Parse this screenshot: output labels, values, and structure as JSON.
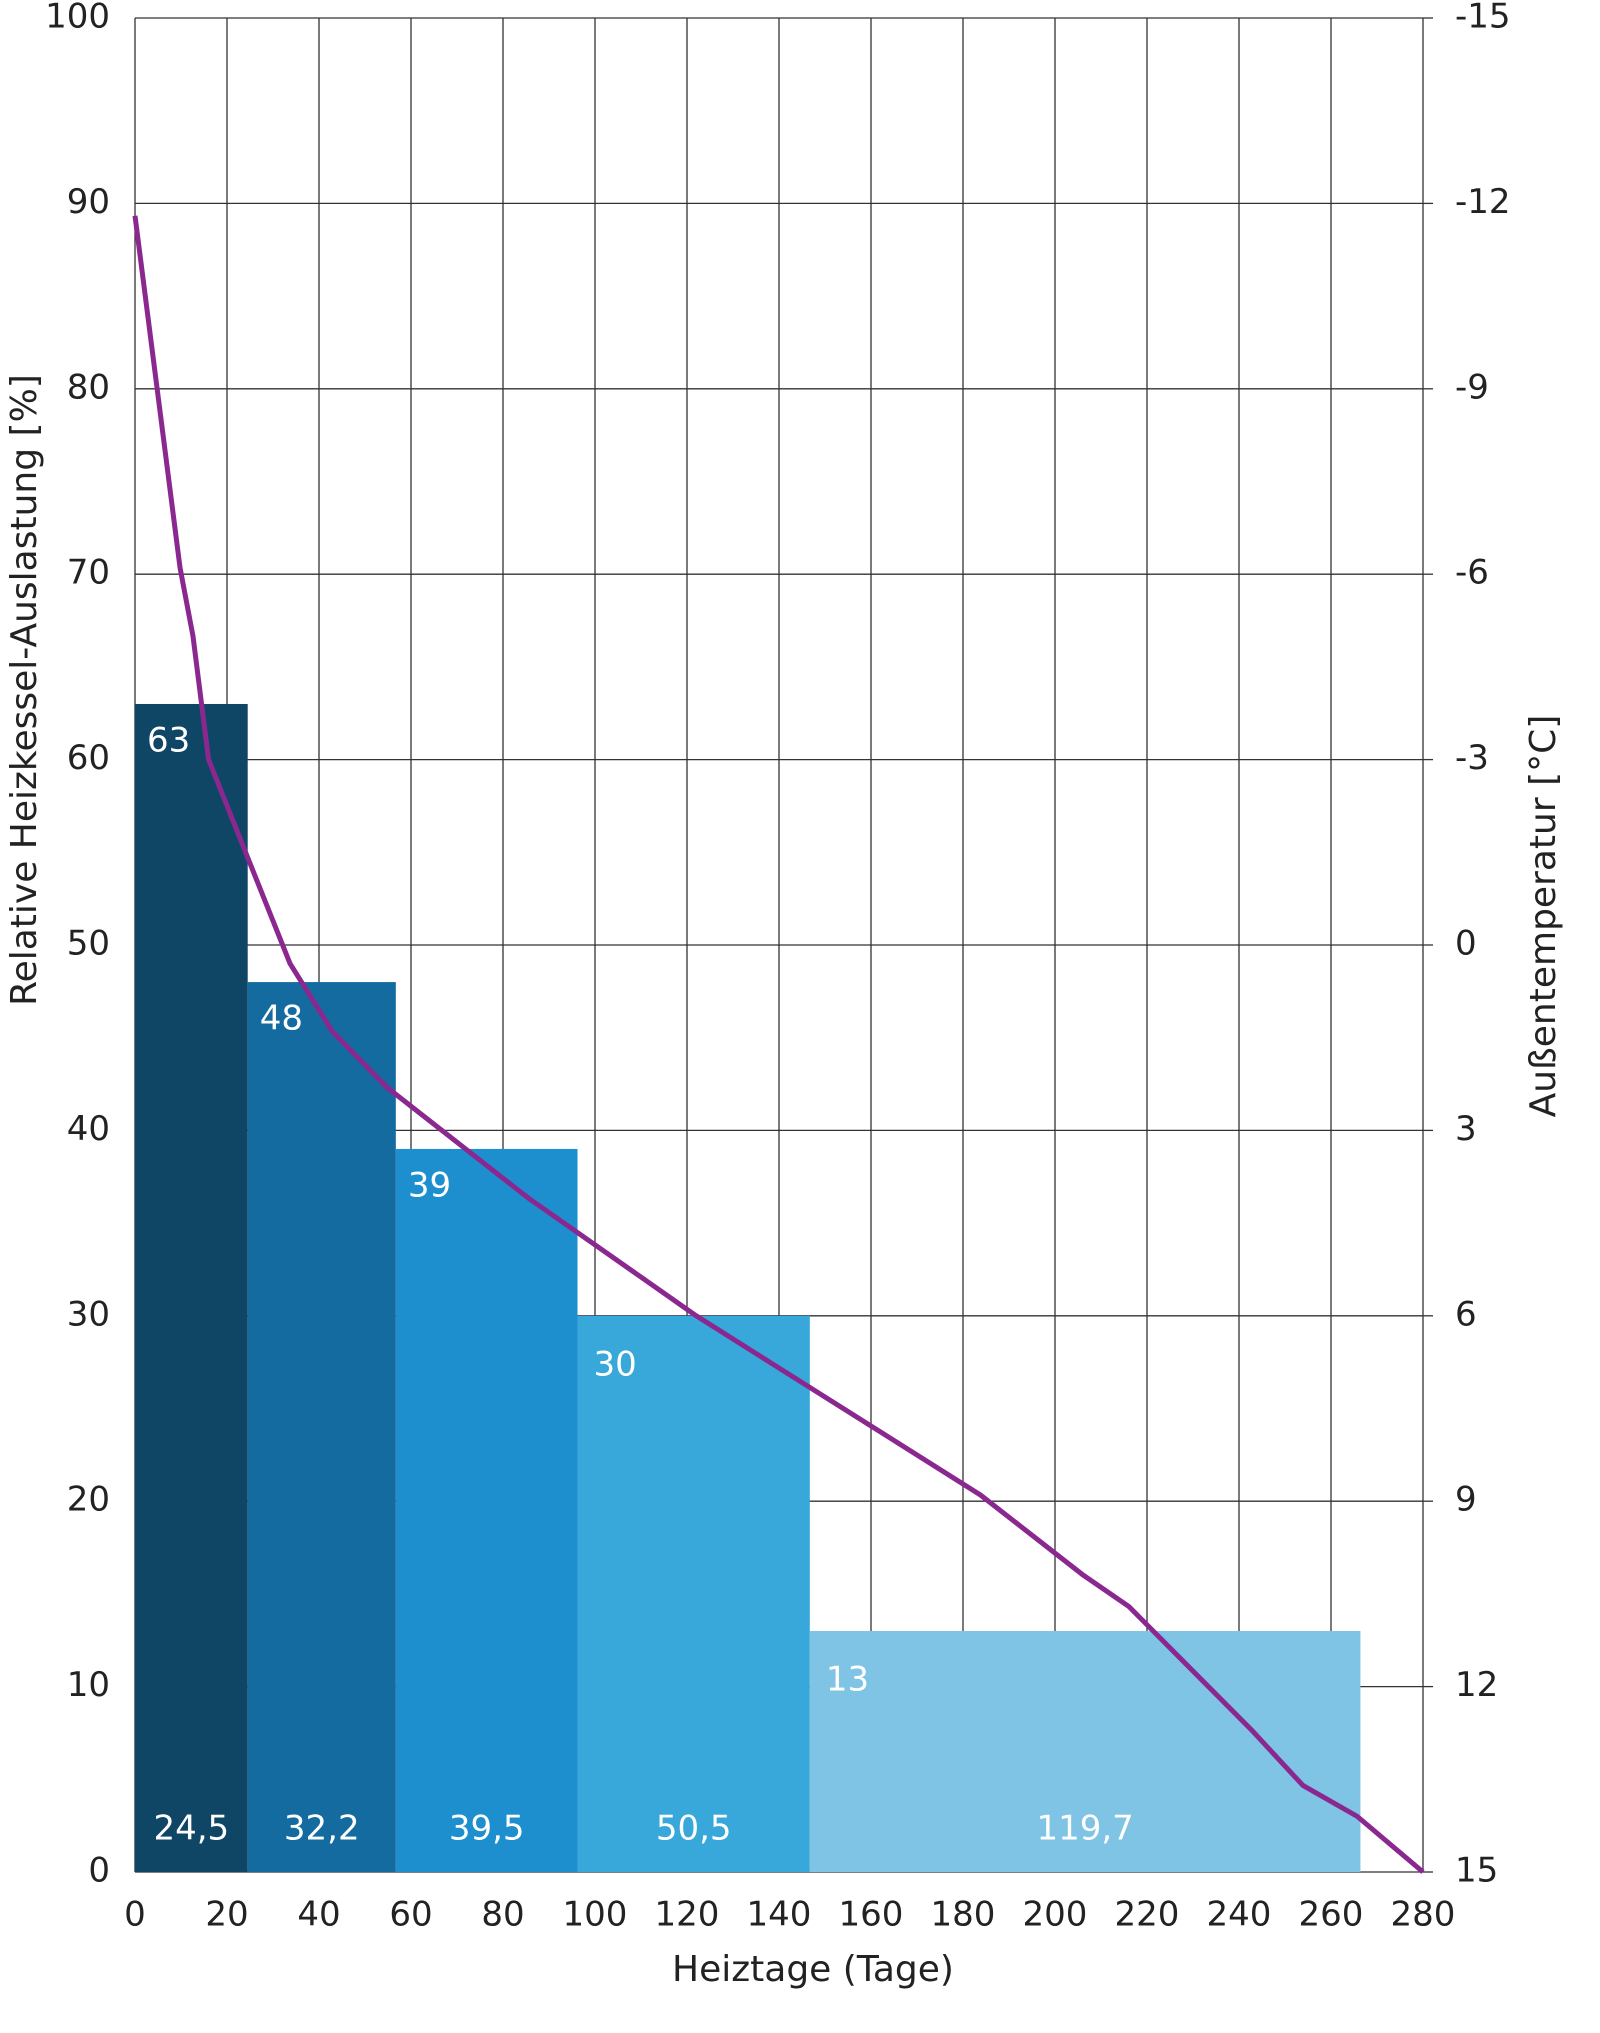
{
  "chart_data": {
    "type": "bar",
    "xlabel": "Heiztage (Tage)",
    "ylabel": "Relative Heizkessel-Auslastung [%]",
    "y2label": "Außentemperatur [°C]",
    "xlim": [
      0,
      280
    ],
    "xticks": [
      0,
      20,
      40,
      60,
      80,
      100,
      120,
      140,
      160,
      180,
      200,
      220,
      240,
      260,
      280
    ],
    "ylim": [
      0,
      100
    ],
    "yticks": [
      0,
      10,
      20,
      30,
      40,
      50,
      60,
      70,
      80,
      90,
      100
    ],
    "y2lim": [
      15,
      -15
    ],
    "y2ticks": [
      15,
      12,
      9,
      6,
      3,
      0,
      -3,
      -6,
      -9,
      -12,
      -15
    ],
    "grid": true,
    "bars": {
      "values": [
        63,
        48,
        39,
        30,
        13
      ],
      "widths": [
        24.5,
        32.2,
        39.5,
        50.5,
        119.7
      ],
      "width_labels": [
        "24,5",
        "32,2",
        "39,5",
        "50,5",
        "119,7"
      ],
      "colors": [
        "#0f4565",
        "#136b9f",
        "#1e8fce",
        "#38a8db",
        "#7fc4e5"
      ]
    },
    "line": {
      "axis": "y2",
      "color": "#8b2890",
      "x": [
        0,
        9.8,
        12.6,
        16,
        33.7,
        42.9,
        54.7,
        85.6,
        122,
        183.8,
        206.2,
        216,
        242.7,
        253.9,
        265.7,
        280
      ],
      "values": [
        -11.8,
        -6.1,
        -5.0,
        -3.0,
        0.3,
        1.4,
        2.3,
        4.1,
        6.0,
        8.9,
        10.2,
        10.7,
        12.7,
        13.6,
        14.1,
        15
      ]
    }
  }
}
